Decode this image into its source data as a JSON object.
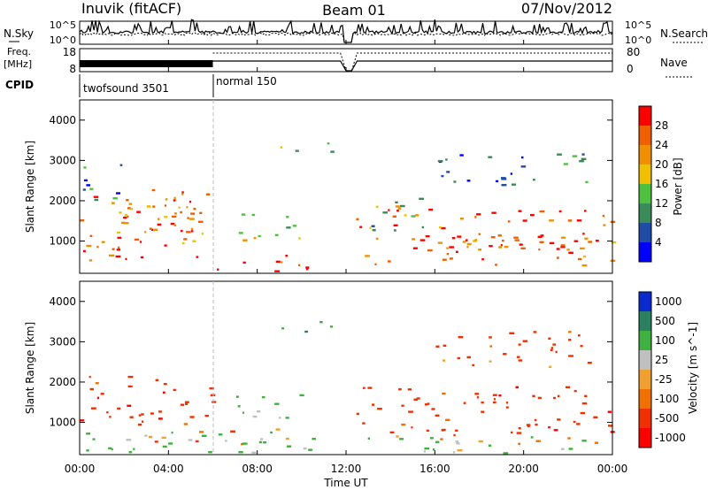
{
  "header": {
    "title": "Inuvik (fitACF)",
    "beam": "Beam 01",
    "date": "07/Nov/2012"
  },
  "top_panels": {
    "nsky_label": "N.Sky",
    "nsky_ticks": [
      "10^5",
      "10^0"
    ],
    "nsearch_label": "N.Search",
    "freq_label": "Freq.",
    "freq_unit": "[MHz]",
    "freq_ticks": [
      "18",
      "8"
    ],
    "nave_label": "Nave",
    "nave_ticks": [
      "80",
      "0"
    ],
    "cpid_label": "CPID",
    "cpid_segments": [
      {
        "name": "twofsound 3501",
        "start_hour": 0,
        "end_hour": 6
      },
      {
        "name": "normal 150",
        "start_hour": 6,
        "end_hour": 24
      }
    ]
  },
  "colors": {
    "power_scale": [
      "#0000ff",
      "#1f4da6",
      "#3a8a5a",
      "#50c040",
      "#f0c000",
      "#f09000",
      "#f06000",
      "#ff0000"
    ],
    "velocity_scale": [
      "#0a2ad0",
      "#2a8060",
      "#40b040",
      "#c0c0c0",
      "#f0a030",
      "#f07000",
      "#f03000",
      "#ff0000"
    ]
  },
  "chart_data": [
    {
      "type": "heatmap",
      "name": "power",
      "xlabel": "Time UT",
      "ylabel": "Slant Range [km]",
      "xlim": [
        0,
        24
      ],
      "ylim": [
        200,
        4500
      ],
      "yticks": [
        "1000",
        "2000",
        "3000",
        "4000"
      ],
      "colorbar": {
        "label": "Power [dB]",
        "ticks": [
          "4",
          "8",
          "12",
          "16",
          "20",
          "24",
          "28"
        ],
        "range": [
          0,
          30
        ]
      },
      "regions": [
        {
          "t0": 0.0,
          "t1": 6.0,
          "r0": 500,
          "r1": 2300,
          "level": 24
        },
        {
          "t0": 0.0,
          "t1": 2.5,
          "r0": 800,
          "r1": 1300,
          "level": 28
        },
        {
          "t0": 1.5,
          "t1": 5.5,
          "r0": 1200,
          "r1": 2200,
          "level": 20
        },
        {
          "t0": 6.0,
          "t1": 10.5,
          "r0": 250,
          "r1": 700,
          "level": 26
        },
        {
          "t0": 7.0,
          "t1": 10.0,
          "r0": 900,
          "r1": 1700,
          "level": 16
        },
        {
          "t0": 12.4,
          "t1": 24.0,
          "r0": 400,
          "r1": 1900,
          "level": 24
        },
        {
          "t0": 13.0,
          "t1": 15.5,
          "r0": 1200,
          "r1": 2100,
          "level": 12
        },
        {
          "t0": 15.0,
          "t1": 21.0,
          "r0": 700,
          "r1": 1200,
          "level": 28
        },
        {
          "t0": 9.0,
          "t1": 11.5,
          "r0": 3200,
          "r1": 3550,
          "level": 12
        },
        {
          "t0": 16.0,
          "t1": 23.0,
          "r0": 2400,
          "r1": 3200,
          "level": 8
        },
        {
          "t0": 0.0,
          "t1": 2.0,
          "r0": 2000,
          "r1": 3000,
          "level": 8
        }
      ]
    },
    {
      "type": "heatmap",
      "name": "velocity",
      "xlabel": "Time UT",
      "ylabel": "Slant Range [km]",
      "xlim": [
        0,
        24
      ],
      "ylim": [
        200,
        4500
      ],
      "yticks": [
        "1000",
        "2000",
        "3000",
        "4000"
      ],
      "xticks": [
        "00:00",
        "04:00",
        "08:00",
        "12:00",
        "16:00",
        "20:00",
        "00:00"
      ],
      "colorbar": {
        "label": "Velocity [m s^-1]",
        "ticks": [
          "1000",
          "500",
          "100",
          "25",
          "-25",
          "-100",
          "-500",
          "-1000"
        ]
      },
      "regions": [
        {
          "t0": 0.0,
          "t1": 6.0,
          "r0": 900,
          "r1": 2200,
          "level": -300
        },
        {
          "t0": 0.0,
          "t1": 10.5,
          "r0": 250,
          "r1": 800,
          "level": 200
        },
        {
          "t0": 3.0,
          "t1": 9.0,
          "r0": 500,
          "r1": 900,
          "level": 0
        },
        {
          "t0": 7.0,
          "t1": 10.0,
          "r0": 1000,
          "r1": 1700,
          "level": 300
        },
        {
          "t0": 12.4,
          "t1": 24.0,
          "r0": 700,
          "r1": 1900,
          "level": -300
        },
        {
          "t0": 12.4,
          "t1": 24.0,
          "r0": 250,
          "r1": 700,
          "level": 150
        },
        {
          "t0": 9.0,
          "t1": 11.5,
          "r0": 3200,
          "r1": 3550,
          "level": 400
        },
        {
          "t0": 16.0,
          "t1": 23.0,
          "r0": 2400,
          "r1": 3300,
          "level": -200
        }
      ]
    }
  ]
}
